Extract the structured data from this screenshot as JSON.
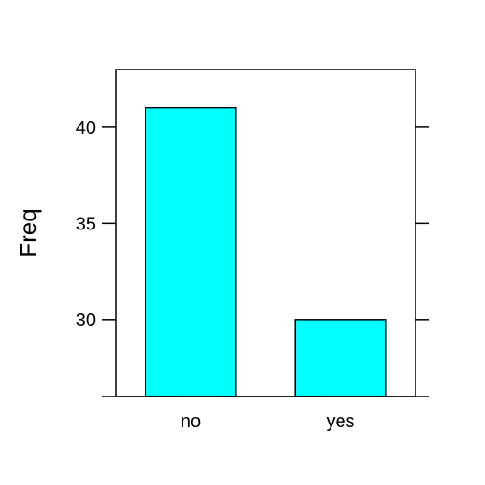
{
  "chart_data": {
    "type": "bar",
    "title": "",
    "xlabel": "",
    "ylabel": "Freq",
    "categories": [
      "no",
      "yes"
    ],
    "values": [
      41,
      30
    ],
    "ylim": [
      26,
      43
    ],
    "yticks": [
      30,
      35,
      40
    ],
    "bar_color": "#00ffff",
    "bar_border_color": "#000000",
    "grid": false,
    "legend": "none"
  }
}
